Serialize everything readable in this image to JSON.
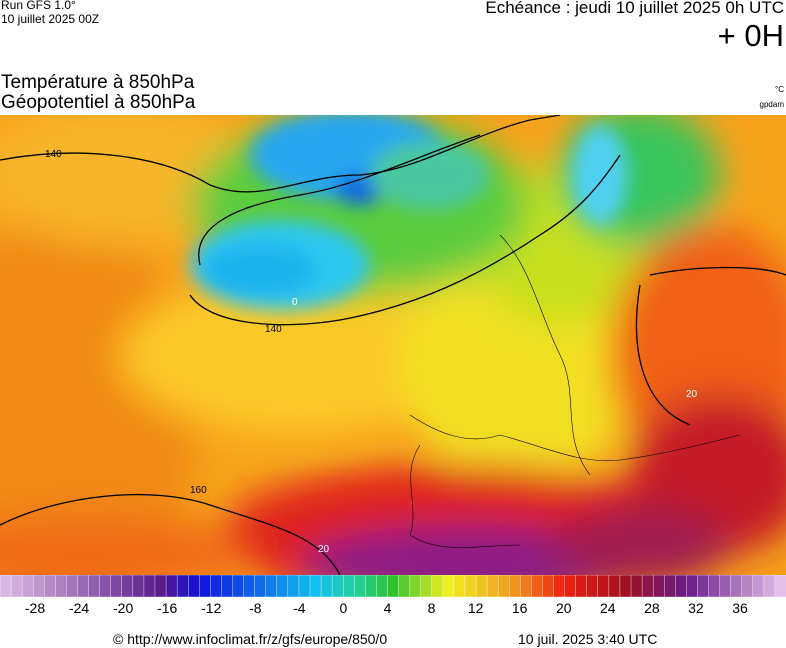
{
  "header": {
    "run": "Run GFS 1.0°",
    "run_date": "10 juillet 2025 00Z",
    "forecast": "Echéance : jeudi 10 juillet 2025 0h UTC",
    "offset": "+ 0H"
  },
  "titles": {
    "temperature": "Température à 850hPa",
    "geopotential": "Géopotentiel à 850hPa",
    "temperature_unit": "°C",
    "geopotential_unit": "gpdam"
  },
  "map": {
    "contour_labels": [
      "140",
      "140",
      "160",
      "20",
      "20",
      "0"
    ]
  },
  "colorbar": {
    "labels": [
      -28,
      -24,
      -20,
      -16,
      -12,
      -8,
      -4,
      0,
      4,
      8,
      12,
      16,
      20,
      24,
      28,
      32,
      36
    ]
  },
  "footer": {
    "source": "© http://www.infoclimat.fr/z/gfs/europe/850/0",
    "generated": "10 juil. 2025  3:40 UTC"
  }
}
